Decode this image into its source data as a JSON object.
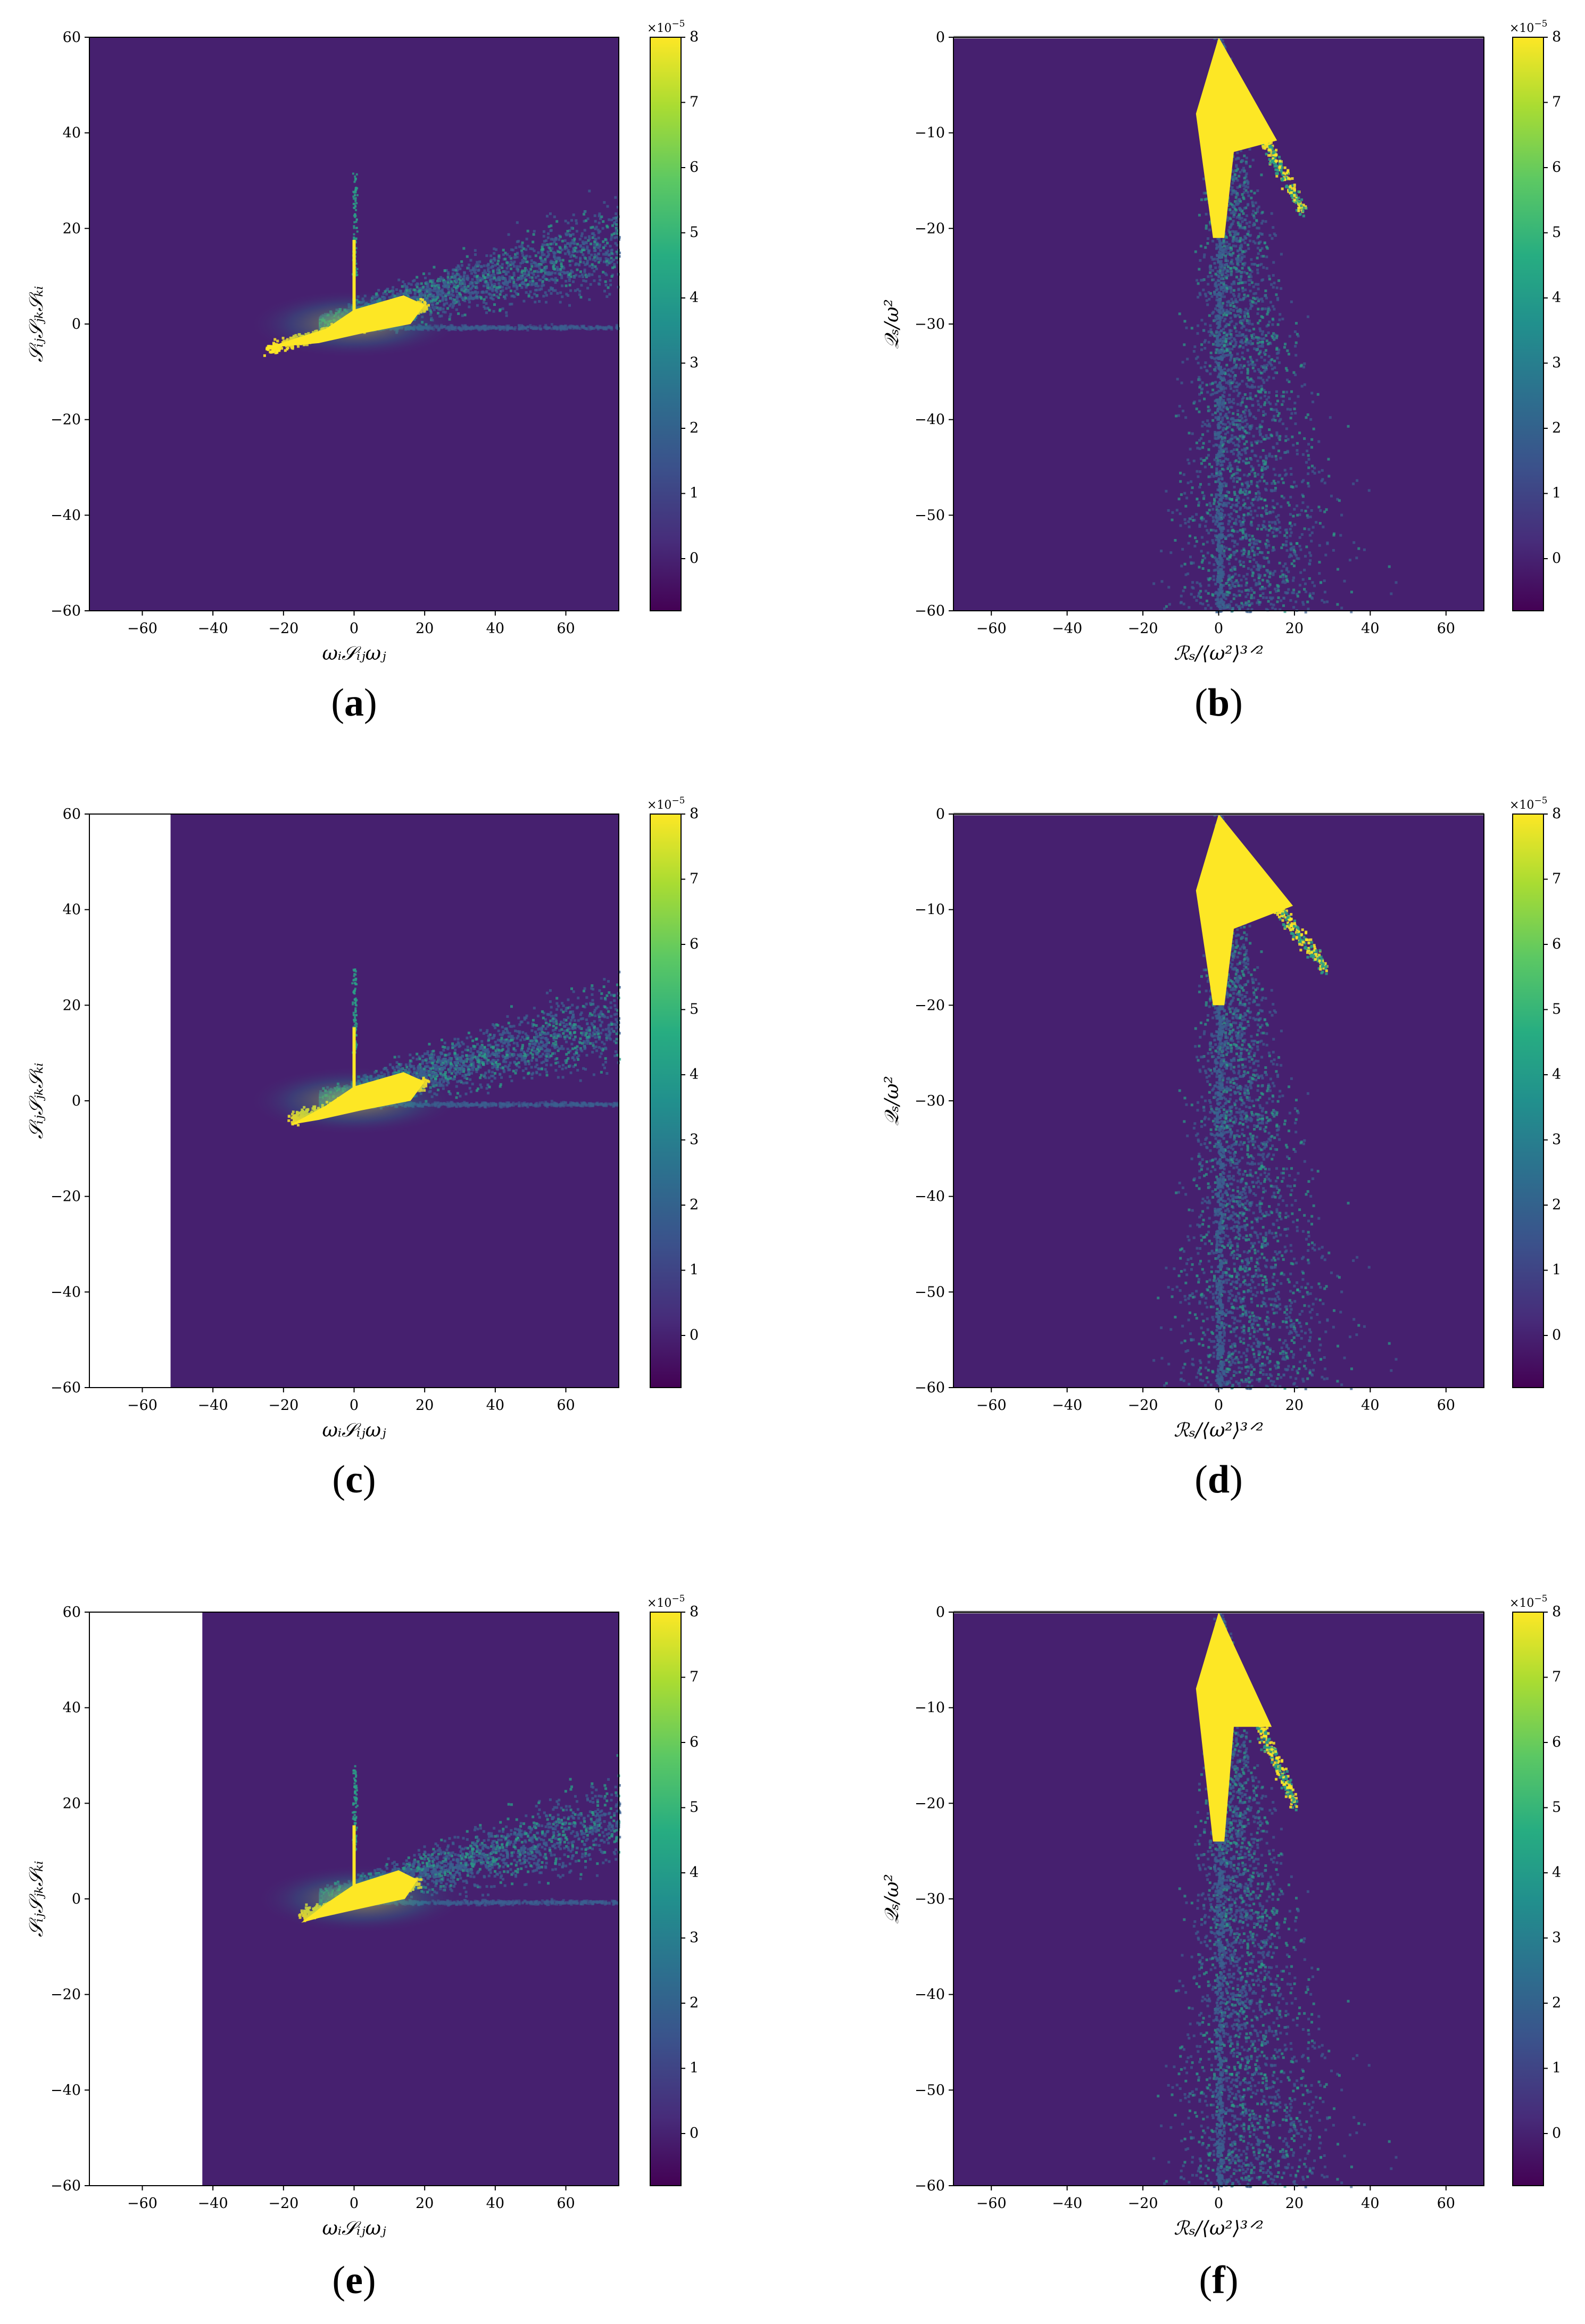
{
  "figure": {
    "colorbar": {
      "ticks": [
        "8",
        "7",
        "6",
        "5",
        "4",
        "3",
        "2",
        "1",
        "0"
      ],
      "tick_values": [
        8,
        7,
        6,
        5,
        4,
        3,
        2,
        1,
        0
      ],
      "range": [
        -0.8,
        8
      ],
      "multiplier": "×10",
      "multiplier_exp": "−5"
    },
    "colors": {
      "background": "#440154",
      "field": "#46206f",
      "core": "#fde725",
      "mid": "#2a9f86",
      "scatter": "#3b5f8f",
      "axis": "#000000"
    }
  },
  "chart_data": [
    {
      "panel": "a",
      "type": "heatmap",
      "label_open": "(",
      "label_letter": "a",
      "label_close": ")",
      "xlabel": "ωᵢ𝒮ᵢⱼωⱼ",
      "ylabel": "𝒮ᵢⱼ𝒮ⱼₖ𝒮ₖᵢ",
      "xlim": [
        -75,
        75
      ],
      "ylim": [
        -60,
        60
      ],
      "xticks": [
        -60,
        -40,
        -20,
        0,
        20,
        40,
        60
      ],
      "yticks": [
        60,
        40,
        20,
        0,
        -20,
        -40,
        -60
      ],
      "xtick_labels": [
        "−60",
        "−40",
        "−20",
        "0",
        "20",
        "40",
        "60"
      ],
      "ytick_labels": [
        "60",
        "40",
        "20",
        "0",
        "−20",
        "−40",
        "−60"
      ],
      "empty_region_x_below": null,
      "features": {
        "core_center": [
          0,
          0
        ],
        "core_span_x": [
          -25,
          20
        ],
        "spike_top": 32,
        "tail_to": [
          75,
          15
        ]
      }
    },
    {
      "panel": "b",
      "type": "heatmap",
      "label_open": "(",
      "label_letter": "b",
      "label_close": ")",
      "xlabel": "ℛₛ/⟨ω²⟩³ᐟ²",
      "ylabel": "𝒬ₛ/ω²",
      "xlim": [
        -70,
        70
      ],
      "ylim": [
        -60,
        0
      ],
      "xticks": [
        -60,
        -40,
        -20,
        0,
        20,
        40,
        60
      ],
      "yticks": [
        0,
        -10,
        -20,
        -30,
        -40,
        -50,
        -60
      ],
      "xtick_labels": [
        "−60",
        "−40",
        "−20",
        "0",
        "20",
        "40",
        "60"
      ],
      "ytick_labels": [
        "0",
        "−10",
        "−20",
        "−30",
        "−40",
        "−50",
        "−60"
      ],
      "features": {
        "apex": [
          0,
          0
        ],
        "core_depth": -21,
        "branch_to": [
          22,
          -18
        ]
      }
    },
    {
      "panel": "c",
      "type": "heatmap",
      "label_open": "(",
      "label_letter": "c",
      "label_close": ")",
      "xlabel": "ωᵢ𝒮ᵢⱼωⱼ",
      "ylabel": "𝒮ᵢⱼ𝒮ⱼₖ𝒮ₖᵢ",
      "xlim": [
        -75,
        75
      ],
      "ylim": [
        -60,
        60
      ],
      "xticks": [
        -60,
        -40,
        -20,
        0,
        20,
        40,
        60
      ],
      "yticks": [
        60,
        40,
        20,
        0,
        -20,
        -40,
        -60
      ],
      "xtick_labels": [
        "−60",
        "−40",
        "−20",
        "0",
        "20",
        "40",
        "60"
      ],
      "ytick_labels": [
        "60",
        "40",
        "20",
        "0",
        "−20",
        "−40",
        "−60"
      ],
      "empty_region_x_below": -52,
      "features": {
        "core_center": [
          0,
          0
        ],
        "core_span_x": [
          -18,
          20
        ],
        "spike_top": 28,
        "tail_to": [
          75,
          15
        ]
      }
    },
    {
      "panel": "d",
      "type": "heatmap",
      "label_open": "(",
      "label_letter": "d",
      "label_close": ")",
      "xlabel": "ℛₛ/⟨ω²⟩³ᐟ²",
      "ylabel": "𝒬ₛ/ω²",
      "xlim": [
        -70,
        70
      ],
      "ylim": [
        -60,
        0
      ],
      "xticks": [
        -60,
        -40,
        -20,
        0,
        20,
        40,
        60
      ],
      "yticks": [
        0,
        -10,
        -20,
        -30,
        -40,
        -50,
        -60
      ],
      "xtick_labels": [
        "−60",
        "−40",
        "−20",
        "0",
        "20",
        "40",
        "60"
      ],
      "ytick_labels": [
        "0",
        "−10",
        "−20",
        "−30",
        "−40",
        "−50",
        "−60"
      ],
      "features": {
        "apex": [
          0,
          0
        ],
        "core_depth": -20,
        "branch_to": [
          28,
          -16
        ]
      }
    },
    {
      "panel": "e",
      "type": "heatmap",
      "label_open": "(",
      "label_letter": "e",
      "label_close": ")",
      "xlabel": "ωᵢ𝒮ᵢⱼωⱼ",
      "ylabel": "𝒮ᵢⱼ𝒮ⱼₖ𝒮ₖᵢ",
      "xlim": [
        -75,
        75
      ],
      "ylim": [
        -60,
        60
      ],
      "xticks": [
        -60,
        -40,
        -20,
        0,
        20,
        40,
        60
      ],
      "yticks": [
        60,
        40,
        20,
        0,
        -20,
        -40,
        -60
      ],
      "xtick_labels": [
        "−60",
        "−40",
        "−20",
        "0",
        "20",
        "40",
        "60"
      ],
      "ytick_labels": [
        "60",
        "40",
        "20",
        "0",
        "−20",
        "−40",
        "−60"
      ],
      "empty_region_x_below": -43,
      "features": {
        "core_center": [
          2,
          0
        ],
        "core_span_x": [
          -15,
          18
        ],
        "spike_top": 28,
        "tail_to": [
          75,
          15
        ]
      }
    },
    {
      "panel": "f",
      "type": "heatmap",
      "label_open": "(",
      "label_letter": "f",
      "label_close": ")",
      "xlabel": "ℛₛ/⟨ω²⟩³ᐟ²",
      "ylabel": "𝒬ₛ/ω²",
      "xlim": [
        -70,
        70
      ],
      "ylim": [
        -60,
        0
      ],
      "xticks": [
        -60,
        -40,
        -20,
        0,
        20,
        40,
        60
      ],
      "yticks": [
        0,
        -10,
        -20,
        -30,
        -40,
        -50,
        -60
      ],
      "xtick_labels": [
        "−60",
        "−40",
        "−20",
        "0",
        "20",
        "40",
        "60"
      ],
      "ytick_labels": [
        "0",
        "−10",
        "−20",
        "−30",
        "−40",
        "−50",
        "−60"
      ],
      "features": {
        "apex": [
          0,
          0
        ],
        "core_depth": -24,
        "branch_to": [
          20,
          -20
        ]
      }
    }
  ]
}
